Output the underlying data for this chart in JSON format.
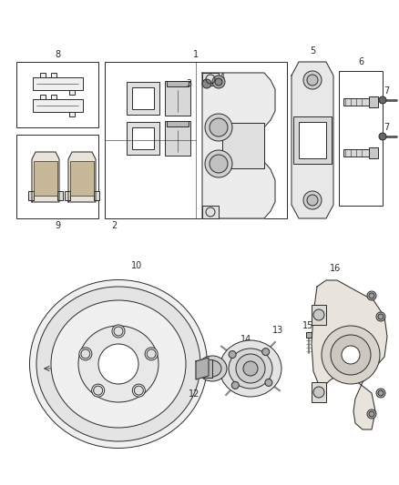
{
  "background_color": "#ffffff",
  "line_color": "#2a2a2a",
  "fig_width": 4.38,
  "fig_height": 5.33,
  "dpi": 100
}
